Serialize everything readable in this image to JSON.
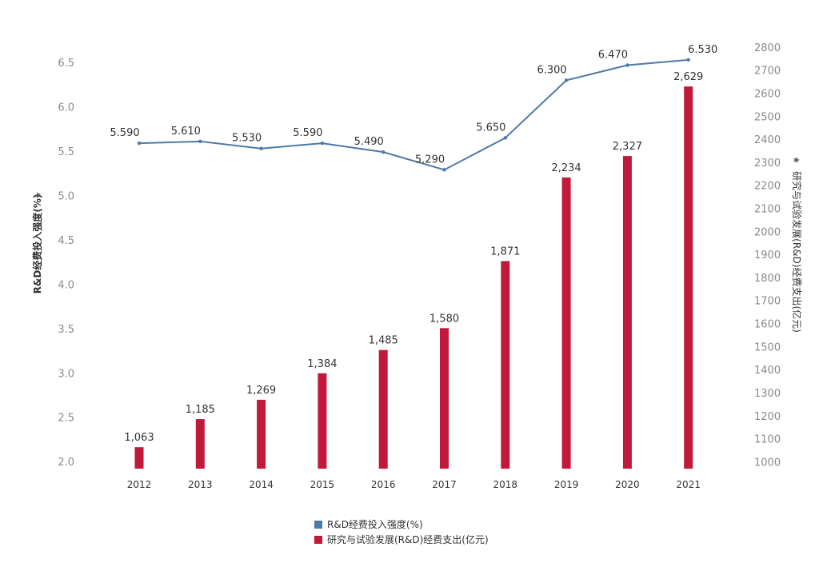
{
  "chart_data": {
    "type": "bar",
    "categories": [
      "2012",
      "2013",
      "2014",
      "2015",
      "2016",
      "2017",
      "2018",
      "2019",
      "2020",
      "2021"
    ],
    "series": [
      {
        "name": "R&D经费投入强度(%)",
        "type": "line",
        "axis": "left",
        "color": "#4e79a7",
        "values": [
          5.59,
          5.61,
          5.53,
          5.59,
          5.49,
          5.29,
          5.65,
          6.3,
          6.47,
          6.53
        ],
        "labels": [
          "5.590",
          "5.610",
          "5.530",
          "5.590",
          "5.490",
          "5.290",
          "5.650",
          "6.300",
          "6.470",
          "6.530"
        ]
      },
      {
        "name": "研究与试验发展(R&D)经费支出(亿元)",
        "type": "bar",
        "axis": "right",
        "color": "#c2183a",
        "values": [
          1063,
          1185,
          1269,
          1384,
          1485,
          1580,
          1871,
          2234,
          2327,
          2629
        ],
        "labels": [
          "1,063",
          "1,185",
          "1,269",
          "1,384",
          "1,485",
          "1,580",
          "1,871",
          "2,234",
          "2,327",
          "2,629"
        ]
      }
    ],
    "left_axis": {
      "title": "R&D经费投入强度(%)",
      "min": 1.92,
      "max": 6.7,
      "ticks": [
        "2.0",
        "2.5",
        "3.0",
        "3.5",
        "4.0",
        "4.5",
        "5.0",
        "5.5",
        "6.0",
        "6.5"
      ]
    },
    "right_axis": {
      "title": "研究与试验发展(R&D)经费支出(亿元)",
      "min": 970,
      "max": 2810,
      "ticks": [
        "1000",
        "1100",
        "1200",
        "1300",
        "1400",
        "1500",
        "1600",
        "1700",
        "1800",
        "1900",
        "2000",
        "2100",
        "2200",
        "2300",
        "2400",
        "2500",
        "2600",
        "2700",
        "2800"
      ]
    },
    "legend_position": "bottom-center",
    "grid": false
  }
}
